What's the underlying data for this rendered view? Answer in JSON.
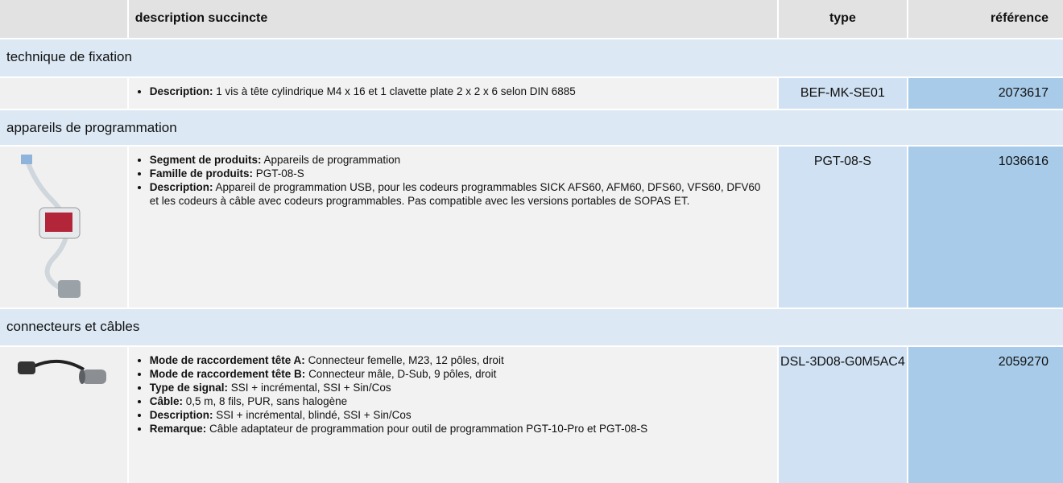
{
  "header": {
    "description": "description succincte",
    "type": "type",
    "reference": "référence"
  },
  "sections": [
    {
      "title": "technique de fixation",
      "items": [
        {
          "bullets": [
            {
              "label": "Description:",
              "text": "1 vis à tête cylindrique M4 x 16 et 1 clavette plate 2 x 2 x 6 selon DIN 6885"
            }
          ],
          "type": "BEF-MK-SE01",
          "reference": "2073617"
        }
      ]
    },
    {
      "title": "appareils de programmation",
      "items": [
        {
          "bullets": [
            {
              "label": "Segment de produits:",
              "text": "Appareils de programmation"
            },
            {
              "label": "Famille de produits:",
              "text": "PGT-08-S"
            },
            {
              "label": "Description:",
              "text": "Appareil de programmation USB, pour les codeurs programmables SICK AFS60, AFM60, DFS60, VFS60, DFV60 et les codeurs à câble avec codeurs programmables. Pas compatible avec les versions portables de SOPAS ET."
            }
          ],
          "type": "PGT-08-S",
          "reference": "1036616"
        }
      ]
    },
    {
      "title": "connecteurs et câbles",
      "items": [
        {
          "bullets": [
            {
              "label": "Mode de raccordement tête A:",
              "text": "Connecteur femelle, M23, 12 pôles, droit"
            },
            {
              "label": "Mode de raccordement tête B:",
              "text": "Connecteur mâle, D-Sub, 9 pôles, droit"
            },
            {
              "label": "Type de signal:",
              "text": "SSI + incrémental, SSI + Sin/Cos"
            },
            {
              "label": "Câble:",
              "text": "0,5 m, 8 fils, PUR, sans halogène"
            },
            {
              "label": "Description:",
              "text": "SSI + incrémental, blindé, SSI + Sin/Cos"
            },
            {
              "label": "Remarque:",
              "text": "Câble adaptateur de programmation pour outil de programmation PGT-10-Pro et PGT-08-S"
            }
          ],
          "type": "DSL-3D08-G0M5AC4",
          "reference": "2059270"
        }
      ]
    }
  ]
}
